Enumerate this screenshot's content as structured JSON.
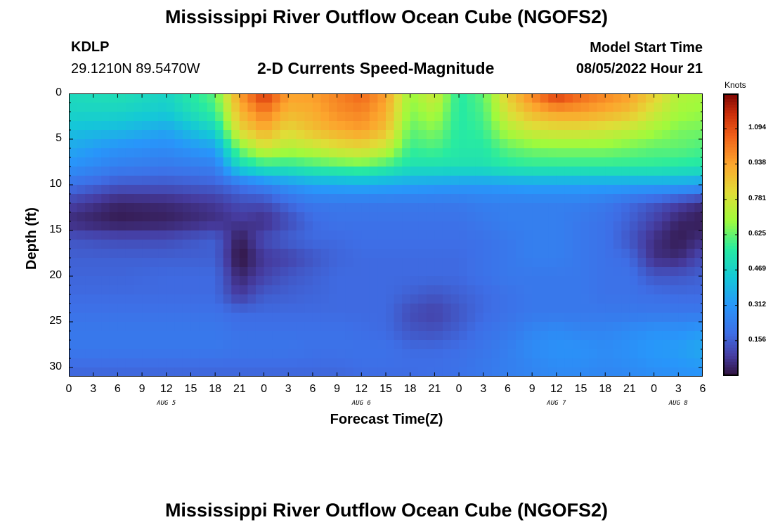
{
  "header": {
    "title": "Mississippi River Outflow Ocean Cube (NGOFS2)",
    "station": "KDLP",
    "coords": "29.1210N  89.5470W",
    "subtitle": "2-D Currents Speed-Magnitude",
    "model_label": "Model Start Time",
    "model_time": "08/05/2022 Hour 21"
  },
  "footer": {
    "title": "Mississippi River Outflow Ocean Cube (NGOFS2)"
  },
  "chart_data": {
    "type": "heatmap",
    "title": "2-D Currents Speed-Magnitude",
    "xlabel": "Forecast Time(Z)",
    "ylabel": "Depth (ft)",
    "x_ticks": [
      "0",
      "3",
      "6",
      "9",
      "12",
      "15",
      "18",
      "21",
      "0",
      "3",
      "6",
      "9",
      "12",
      "15",
      "18",
      "21",
      "0",
      "3",
      "6",
      "9",
      "12",
      "15",
      "18",
      "21",
      "0",
      "3",
      "6"
    ],
    "day_labels": [
      "AUG 5",
      "AUG 6",
      "AUG 7",
      "AUG 8"
    ],
    "y_ticks": [
      "0",
      "5",
      "10",
      "15",
      "20",
      "25",
      "30"
    ],
    "ylim": [
      31,
      0
    ],
    "colorbar": {
      "unit": "Knots",
      "ticks": [
        "1.094",
        "0.938",
        "0.781",
        "0.625",
        "0.469",
        "0.312",
        "0.156"
      ],
      "range": [
        0,
        1.25
      ]
    },
    "x_hours": [
      0,
      6,
      12,
      18,
      21,
      24,
      27,
      30,
      33,
      36,
      39,
      42,
      45,
      48,
      51,
      54,
      57,
      60,
      63,
      66,
      69,
      72,
      75,
      78
    ],
    "depth_ft": [
      0,
      2,
      4,
      6,
      8,
      10,
      12,
      14,
      16,
      18,
      20,
      22,
      24,
      26,
      28,
      30,
      31
    ],
    "values": [
      [
        0.5,
        0.52,
        0.48,
        0.62,
        0.95,
        1.15,
        0.95,
        0.95,
        1.0,
        1.05,
        0.95,
        0.68,
        0.78,
        0.55,
        0.62,
        0.85,
        1.0,
        1.15,
        1.05,
        1.0,
        0.95,
        0.85,
        0.72,
        0.7
      ],
      [
        0.48,
        0.48,
        0.45,
        0.58,
        0.9,
        1.02,
        0.9,
        0.92,
        0.98,
        1.0,
        0.92,
        0.66,
        0.72,
        0.55,
        0.6,
        0.8,
        0.9,
        0.95,
        0.95,
        0.92,
        0.88,
        0.78,
        0.7,
        0.68
      ],
      [
        0.42,
        0.4,
        0.35,
        0.48,
        0.82,
        0.92,
        0.82,
        0.88,
        0.92,
        0.95,
        0.88,
        0.62,
        0.66,
        0.55,
        0.58,
        0.72,
        0.78,
        0.8,
        0.8,
        0.78,
        0.75,
        0.7,
        0.65,
        0.64
      ],
      [
        0.36,
        0.3,
        0.28,
        0.34,
        0.65,
        0.78,
        0.72,
        0.75,
        0.8,
        0.82,
        0.76,
        0.58,
        0.6,
        0.55,
        0.55,
        0.62,
        0.65,
        0.66,
        0.66,
        0.66,
        0.64,
        0.62,
        0.62,
        0.6
      ],
      [
        0.3,
        0.24,
        0.22,
        0.24,
        0.48,
        0.55,
        0.55,
        0.58,
        0.6,
        0.62,
        0.58,
        0.52,
        0.52,
        0.52,
        0.52,
        0.55,
        0.56,
        0.56,
        0.56,
        0.56,
        0.56,
        0.56,
        0.55,
        0.54
      ],
      [
        0.2,
        0.14,
        0.14,
        0.16,
        0.2,
        0.25,
        0.3,
        0.34,
        0.35,
        0.36,
        0.35,
        0.34,
        0.33,
        0.32,
        0.32,
        0.33,
        0.34,
        0.34,
        0.34,
        0.34,
        0.34,
        0.34,
        0.34,
        0.32
      ],
      [
        0.1,
        0.04,
        0.05,
        0.08,
        0.12,
        0.12,
        0.18,
        0.22,
        0.22,
        0.22,
        0.22,
        0.22,
        0.22,
        0.22,
        0.24,
        0.24,
        0.24,
        0.24,
        0.24,
        0.22,
        0.18,
        0.14,
        0.1,
        0.06
      ],
      [
        0.05,
        0.02,
        0.03,
        0.06,
        0.08,
        0.06,
        0.12,
        0.18,
        0.2,
        0.2,
        0.2,
        0.2,
        0.2,
        0.2,
        0.22,
        0.24,
        0.24,
        0.24,
        0.22,
        0.2,
        0.16,
        0.1,
        0.04,
        0.02
      ],
      [
        0.14,
        0.12,
        0.12,
        0.16,
        0.02,
        0.12,
        0.16,
        0.18,
        0.18,
        0.19,
        0.19,
        0.19,
        0.19,
        0.19,
        0.2,
        0.22,
        0.24,
        0.24,
        0.22,
        0.2,
        0.14,
        0.06,
        0.02,
        0.06
      ],
      [
        0.16,
        0.16,
        0.16,
        0.16,
        0.0,
        0.08,
        0.1,
        0.14,
        0.17,
        0.18,
        0.18,
        0.18,
        0.18,
        0.18,
        0.2,
        0.22,
        0.24,
        0.24,
        0.22,
        0.2,
        0.18,
        0.06,
        0.05,
        0.12
      ],
      [
        0.17,
        0.17,
        0.18,
        0.18,
        0.04,
        0.1,
        0.14,
        0.16,
        0.18,
        0.18,
        0.18,
        0.18,
        0.18,
        0.18,
        0.2,
        0.22,
        0.22,
        0.22,
        0.22,
        0.2,
        0.2,
        0.14,
        0.14,
        0.16
      ],
      [
        0.18,
        0.18,
        0.18,
        0.18,
        0.08,
        0.15,
        0.16,
        0.17,
        0.18,
        0.18,
        0.18,
        0.16,
        0.14,
        0.16,
        0.18,
        0.2,
        0.22,
        0.22,
        0.22,
        0.2,
        0.2,
        0.19,
        0.18,
        0.18
      ],
      [
        0.2,
        0.2,
        0.2,
        0.2,
        0.18,
        0.18,
        0.18,
        0.18,
        0.18,
        0.18,
        0.18,
        0.12,
        0.1,
        0.14,
        0.18,
        0.2,
        0.22,
        0.22,
        0.22,
        0.22,
        0.22,
        0.22,
        0.22,
        0.22
      ],
      [
        0.22,
        0.22,
        0.22,
        0.22,
        0.2,
        0.2,
        0.2,
        0.2,
        0.2,
        0.19,
        0.18,
        0.14,
        0.13,
        0.16,
        0.2,
        0.22,
        0.26,
        0.28,
        0.26,
        0.26,
        0.28,
        0.3,
        0.3,
        0.32
      ],
      [
        0.22,
        0.22,
        0.22,
        0.22,
        0.21,
        0.21,
        0.21,
        0.2,
        0.2,
        0.2,
        0.2,
        0.18,
        0.18,
        0.19,
        0.21,
        0.24,
        0.28,
        0.3,
        0.3,
        0.28,
        0.3,
        0.32,
        0.33,
        0.36
      ],
      [
        0.18,
        0.18,
        0.18,
        0.18,
        0.18,
        0.18,
        0.18,
        0.18,
        0.18,
        0.19,
        0.19,
        0.19,
        0.19,
        0.2,
        0.22,
        0.24,
        0.26,
        0.28,
        0.28,
        0.27,
        0.28,
        0.3,
        0.31,
        0.32
      ],
      [
        0.17,
        0.17,
        0.17,
        0.17,
        0.17,
        0.17,
        0.17,
        0.17,
        0.17,
        0.18,
        0.18,
        0.18,
        0.19,
        0.2,
        0.22,
        0.24,
        0.26,
        0.27,
        0.27,
        0.26,
        0.27,
        0.28,
        0.29,
        0.3
      ]
    ]
  }
}
